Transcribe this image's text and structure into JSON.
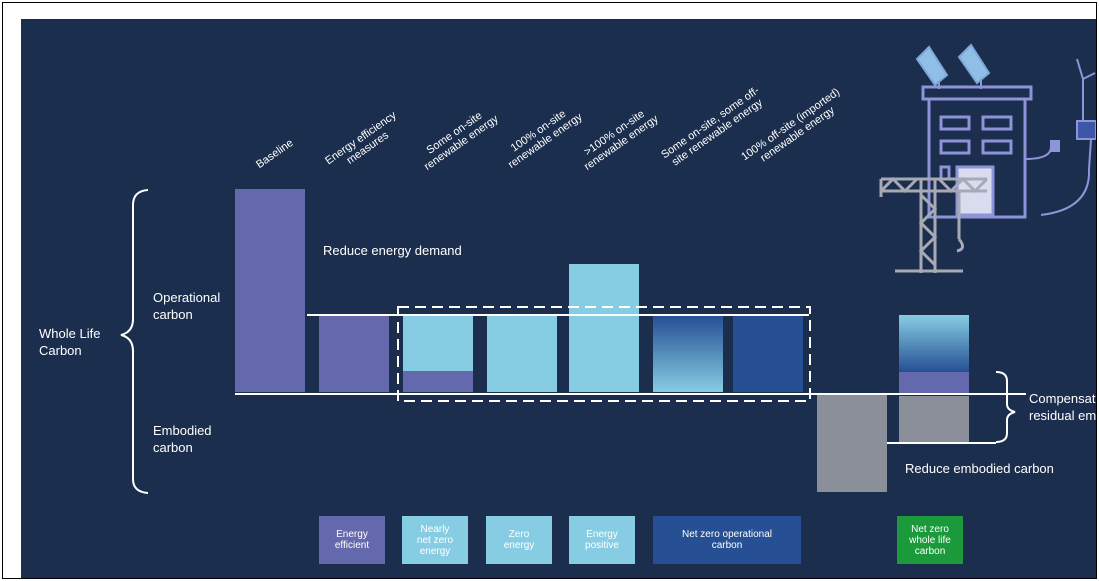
{
  "colors": {
    "background": "#1b2e4d",
    "purple": "#6468ad",
    "light_blue": "#86cde3",
    "dark_blue": "#264f94",
    "grey": "#8a8f99",
    "green": "#1a9a3a",
    "line": "#ffffff"
  },
  "left_labels": {
    "whole_life_carbon": "Whole Life\nCarbon",
    "operational_carbon": "Operational\ncarbon",
    "embodied_carbon": "Embodied\ncarbon"
  },
  "column_headers": [
    "Baseline",
    "Energy efficiency\nmeasures",
    "Some on-site\nrenewable energy",
    "100% on-site\nrenewable energy",
    ">100% on-site\nrenewable energy",
    "Some on-site, some off-\nsite renewable energy",
    "100% off-site (imported)\nrenewable energy"
  ],
  "annotations": {
    "reduce_energy_demand": "Reduce energy demand",
    "reduce_embodied_carbon": "Reduce embodied carbon",
    "compensate": "Compensate\nresidual em"
  },
  "categories": [
    {
      "label": "Energy\nefficient",
      "color": "#6468ad"
    },
    {
      "label": "Nearly\nnet zero\nenergy",
      "color": "#86cde3"
    },
    {
      "label": "Zero\nenergy",
      "color": "#86cde3"
    },
    {
      "label": "Energy\npositive",
      "color": "#86cde3"
    },
    {
      "label": "Net zero operational\ncarbon",
      "color": "#264f94"
    },
    {
      "label": "Net zero\nwhole life\ncarbon",
      "color": "#1a9a3a"
    }
  ],
  "icon_names": [
    "building-icon",
    "solar-panel-icon",
    "crane-icon",
    "wind-turbine-icon",
    "plug-icon"
  ]
}
